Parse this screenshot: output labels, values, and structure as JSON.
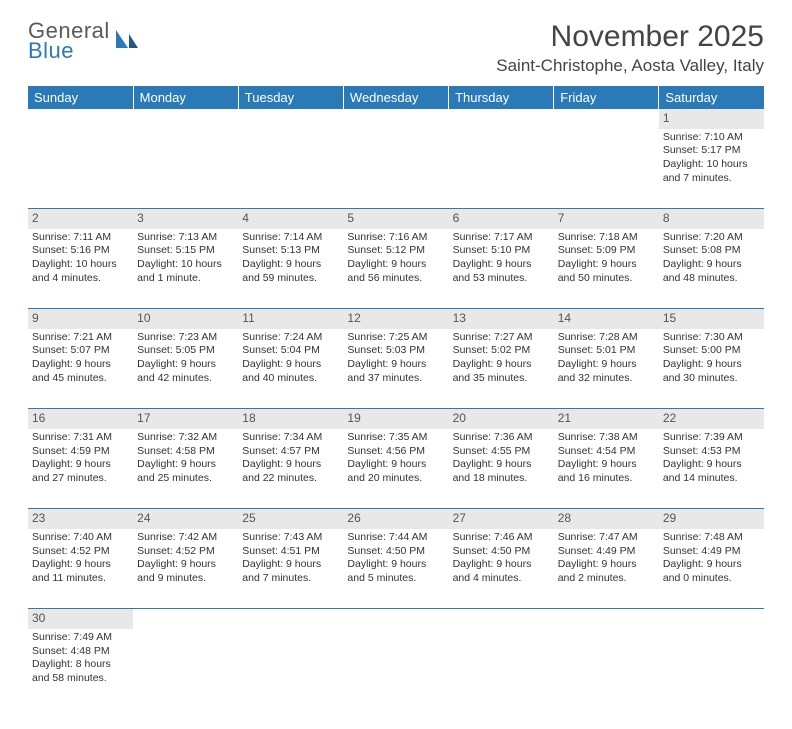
{
  "brand": {
    "name_top": "General",
    "name_bottom": "Blue",
    "text_color": "#5a5a5a",
    "accent_color": "#2a7ab8"
  },
  "title": "November 2025",
  "location": "Saint-Christophe, Aosta Valley, Italy",
  "colors": {
    "header_bg": "#2a7ab8",
    "header_text": "#ffffff",
    "daynum_bg": "#e8e8e8",
    "grid_line": "#2a7ab8",
    "body_text": "#333333"
  },
  "day_headers": [
    "Sunday",
    "Monday",
    "Tuesday",
    "Wednesday",
    "Thursday",
    "Friday",
    "Saturday"
  ],
  "weeks": [
    [
      null,
      null,
      null,
      null,
      null,
      null,
      {
        "n": "1",
        "sr": "Sunrise: 7:10 AM",
        "ss": "Sunset: 5:17 PM",
        "dl": "Daylight: 10 hours and 7 minutes."
      }
    ],
    [
      {
        "n": "2",
        "sr": "Sunrise: 7:11 AM",
        "ss": "Sunset: 5:16 PM",
        "dl": "Daylight: 10 hours and 4 minutes."
      },
      {
        "n": "3",
        "sr": "Sunrise: 7:13 AM",
        "ss": "Sunset: 5:15 PM",
        "dl": "Daylight: 10 hours and 1 minute."
      },
      {
        "n": "4",
        "sr": "Sunrise: 7:14 AM",
        "ss": "Sunset: 5:13 PM",
        "dl": "Daylight: 9 hours and 59 minutes."
      },
      {
        "n": "5",
        "sr": "Sunrise: 7:16 AM",
        "ss": "Sunset: 5:12 PM",
        "dl": "Daylight: 9 hours and 56 minutes."
      },
      {
        "n": "6",
        "sr": "Sunrise: 7:17 AM",
        "ss": "Sunset: 5:10 PM",
        "dl": "Daylight: 9 hours and 53 minutes."
      },
      {
        "n": "7",
        "sr": "Sunrise: 7:18 AM",
        "ss": "Sunset: 5:09 PM",
        "dl": "Daylight: 9 hours and 50 minutes."
      },
      {
        "n": "8",
        "sr": "Sunrise: 7:20 AM",
        "ss": "Sunset: 5:08 PM",
        "dl": "Daylight: 9 hours and 48 minutes."
      }
    ],
    [
      {
        "n": "9",
        "sr": "Sunrise: 7:21 AM",
        "ss": "Sunset: 5:07 PM",
        "dl": "Daylight: 9 hours and 45 minutes."
      },
      {
        "n": "10",
        "sr": "Sunrise: 7:23 AM",
        "ss": "Sunset: 5:05 PM",
        "dl": "Daylight: 9 hours and 42 minutes."
      },
      {
        "n": "11",
        "sr": "Sunrise: 7:24 AM",
        "ss": "Sunset: 5:04 PM",
        "dl": "Daylight: 9 hours and 40 minutes."
      },
      {
        "n": "12",
        "sr": "Sunrise: 7:25 AM",
        "ss": "Sunset: 5:03 PM",
        "dl": "Daylight: 9 hours and 37 minutes."
      },
      {
        "n": "13",
        "sr": "Sunrise: 7:27 AM",
        "ss": "Sunset: 5:02 PM",
        "dl": "Daylight: 9 hours and 35 minutes."
      },
      {
        "n": "14",
        "sr": "Sunrise: 7:28 AM",
        "ss": "Sunset: 5:01 PM",
        "dl": "Daylight: 9 hours and 32 minutes."
      },
      {
        "n": "15",
        "sr": "Sunrise: 7:30 AM",
        "ss": "Sunset: 5:00 PM",
        "dl": "Daylight: 9 hours and 30 minutes."
      }
    ],
    [
      {
        "n": "16",
        "sr": "Sunrise: 7:31 AM",
        "ss": "Sunset: 4:59 PM",
        "dl": "Daylight: 9 hours and 27 minutes."
      },
      {
        "n": "17",
        "sr": "Sunrise: 7:32 AM",
        "ss": "Sunset: 4:58 PM",
        "dl": "Daylight: 9 hours and 25 minutes."
      },
      {
        "n": "18",
        "sr": "Sunrise: 7:34 AM",
        "ss": "Sunset: 4:57 PM",
        "dl": "Daylight: 9 hours and 22 minutes."
      },
      {
        "n": "19",
        "sr": "Sunrise: 7:35 AM",
        "ss": "Sunset: 4:56 PM",
        "dl": "Daylight: 9 hours and 20 minutes."
      },
      {
        "n": "20",
        "sr": "Sunrise: 7:36 AM",
        "ss": "Sunset: 4:55 PM",
        "dl": "Daylight: 9 hours and 18 minutes."
      },
      {
        "n": "21",
        "sr": "Sunrise: 7:38 AM",
        "ss": "Sunset: 4:54 PM",
        "dl": "Daylight: 9 hours and 16 minutes."
      },
      {
        "n": "22",
        "sr": "Sunrise: 7:39 AM",
        "ss": "Sunset: 4:53 PM",
        "dl": "Daylight: 9 hours and 14 minutes."
      }
    ],
    [
      {
        "n": "23",
        "sr": "Sunrise: 7:40 AM",
        "ss": "Sunset: 4:52 PM",
        "dl": "Daylight: 9 hours and 11 minutes."
      },
      {
        "n": "24",
        "sr": "Sunrise: 7:42 AM",
        "ss": "Sunset: 4:52 PM",
        "dl": "Daylight: 9 hours and 9 minutes."
      },
      {
        "n": "25",
        "sr": "Sunrise: 7:43 AM",
        "ss": "Sunset: 4:51 PM",
        "dl": "Daylight: 9 hours and 7 minutes."
      },
      {
        "n": "26",
        "sr": "Sunrise: 7:44 AM",
        "ss": "Sunset: 4:50 PM",
        "dl": "Daylight: 9 hours and 5 minutes."
      },
      {
        "n": "27",
        "sr": "Sunrise: 7:46 AM",
        "ss": "Sunset: 4:50 PM",
        "dl": "Daylight: 9 hours and 4 minutes."
      },
      {
        "n": "28",
        "sr": "Sunrise: 7:47 AM",
        "ss": "Sunset: 4:49 PM",
        "dl": "Daylight: 9 hours and 2 minutes."
      },
      {
        "n": "29",
        "sr": "Sunrise: 7:48 AM",
        "ss": "Sunset: 4:49 PM",
        "dl": "Daylight: 9 hours and 0 minutes."
      }
    ],
    [
      {
        "n": "30",
        "sr": "Sunrise: 7:49 AM",
        "ss": "Sunset: 4:48 PM",
        "dl": "Daylight: 8 hours and 58 minutes."
      },
      null,
      null,
      null,
      null,
      null,
      null
    ]
  ]
}
